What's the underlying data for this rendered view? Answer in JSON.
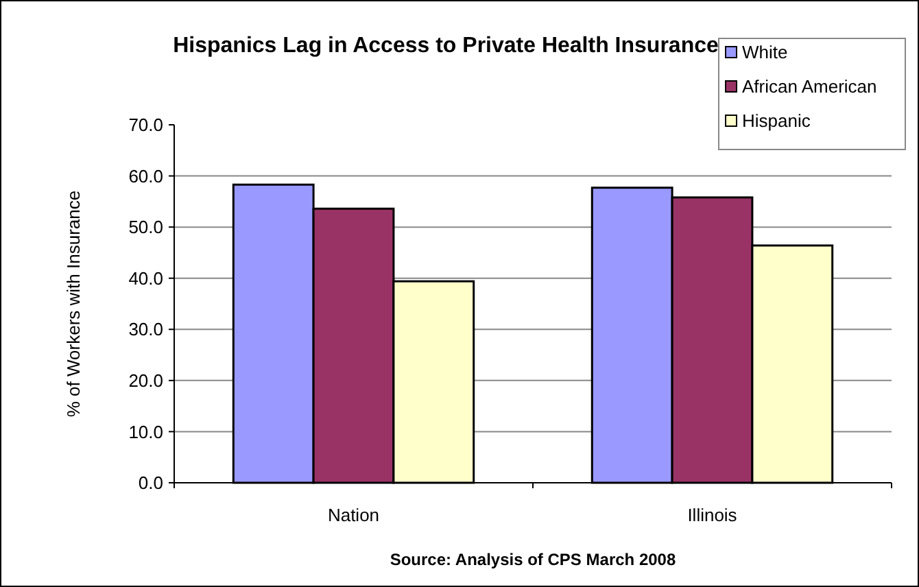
{
  "chart_data": {
    "type": "bar",
    "title": "Hispanics Lag in Access to Private Health Insurance",
    "ylabel": "% of Workers with Insurance",
    "categories": [
      "Nation",
      "Illinois"
    ],
    "series": [
      {
        "name": "White",
        "color": "#9999ff",
        "values": [
          58.3,
          57.7
        ]
      },
      {
        "name": "African American",
        "color": "#993366",
        "values": [
          53.6,
          55.8
        ]
      },
      {
        "name": "Hispanic",
        "color": "#ffffcc",
        "values": [
          39.4,
          46.4
        ]
      }
    ],
    "ylim": [
      0,
      70
    ],
    "yticks": [
      {
        "value": 0,
        "label": "0.0"
      },
      {
        "value": 10,
        "label": "10.0"
      },
      {
        "value": 20,
        "label": "20.0"
      },
      {
        "value": 30,
        "label": "30.0"
      },
      {
        "value": 40,
        "label": "40.0"
      },
      {
        "value": 50,
        "label": "50.0"
      },
      {
        "value": 60,
        "label": "60.0"
      },
      {
        "value": 70,
        "label": "70.0"
      }
    ],
    "grid": "y",
    "legend": "top right",
    "annotations": [
      "Source:  Analysis of CPS March 2008"
    ]
  }
}
